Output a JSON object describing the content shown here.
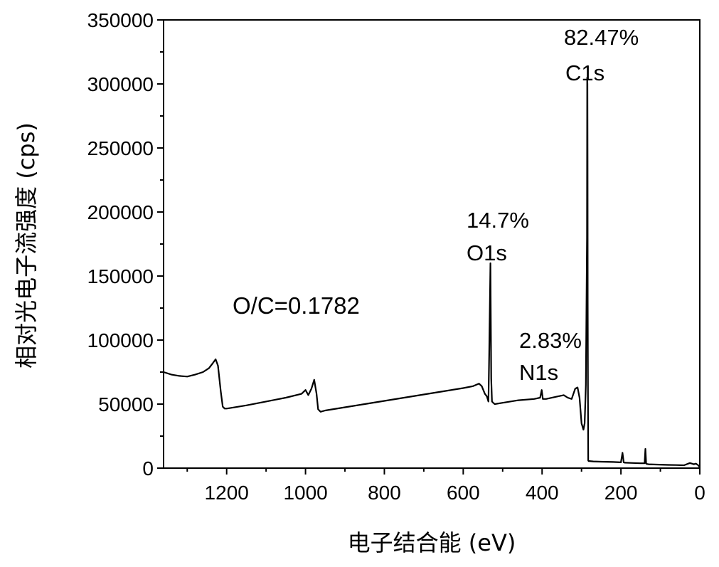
{
  "chart_data": {
    "type": "line",
    "xlabel": "电子结合能 (eV)",
    "ylabel": "相对光电子流强度 (cps)",
    "xlim": [
      1360,
      0
    ],
    "ylim": [
      0,
      350000
    ],
    "x_ticks": [
      1200,
      1000,
      800,
      600,
      400,
      200,
      0
    ],
    "y_ticks": [
      0,
      50000,
      100000,
      150000,
      200000,
      250000,
      300000,
      350000
    ],
    "x_tick_labels": [
      "1200",
      "1000",
      "800",
      "600",
      "400",
      "200",
      "0"
    ],
    "y_tick_labels": [
      "0",
      "50000",
      "100000",
      "150000",
      "200000",
      "250000",
      "300000",
      "350000"
    ],
    "grid": false,
    "legend": "none",
    "line_color": "#000000",
    "series": [
      {
        "x": [
          1360,
          1340,
          1320,
          1300,
          1280,
          1260,
          1245,
          1235,
          1228,
          1222,
          1215,
          1210,
          1205,
          1200,
          1190,
          1150,
          1100,
          1050,
          1010,
          1000,
          993,
          985,
          978,
          972,
          968,
          962,
          950,
          900,
          850,
          800,
          750,
          700,
          650,
          600,
          575,
          560,
          553,
          545,
          540,
          536,
          534,
          531,
          529,
          527,
          524,
          520,
          500,
          460,
          420,
          405,
          401,
          398,
          390,
          360,
          345,
          335,
          325,
          316,
          310,
          305,
          300,
          295,
          292,
          289,
          286,
          285.5,
          285,
          284.6,
          284.2,
          283.6,
          283,
          282,
          280,
          270,
          250,
          220,
          200,
          196,
          193,
          190,
          170,
          150,
          140,
          138,
          136,
          134,
          130,
          110,
          80,
          60,
          40,
          25,
          15,
          10,
          5,
          2,
          0
        ],
        "y": [
          75000,
          73000,
          72000,
          71500,
          73000,
          75000,
          78000,
          82000,
          85000,
          80000,
          60000,
          48000,
          46500,
          46500,
          47000,
          49000,
          52000,
          55000,
          58000,
          61000,
          57000,
          62000,
          69000,
          58000,
          46000,
          44000,
          45000,
          47500,
          50000,
          52500,
          55000,
          57500,
          60000,
          62500,
          64000,
          66000,
          64000,
          58000,
          56000,
          52000,
          90000,
          160000,
          70000,
          52000,
          51000,
          50000,
          51000,
          53000,
          54000,
          55000,
          61000,
          54000,
          54000,
          56000,
          57000,
          55000,
          54000,
          62000,
          63000,
          55000,
          35000,
          30000,
          35000,
          65000,
          180000,
          305000,
          300000,
          240000,
          130000,
          50000,
          6000,
          5500,
          5500,
          5200,
          5000,
          4800,
          4500,
          12000,
          4500,
          4200,
          4000,
          3800,
          3800,
          15000,
          3500,
          3200,
          3000,
          2800,
          2500,
          2400,
          2200,
          4000,
          3000,
          3500,
          2500,
          1500,
          0
        ]
      }
    ],
    "annotations": [
      {
        "id": "c1s_pct",
        "text": "82.47%"
      },
      {
        "id": "c1s_label",
        "text": "C1s"
      },
      {
        "id": "o1s_pct",
        "text": "14.7%"
      },
      {
        "id": "o1s_label",
        "text": "O1s"
      },
      {
        "id": "n1s_pct",
        "text": "2.83%"
      },
      {
        "id": "n1s_label",
        "text": "N1s"
      },
      {
        "id": "ratio",
        "text": "O/C=0.1782"
      }
    ]
  }
}
